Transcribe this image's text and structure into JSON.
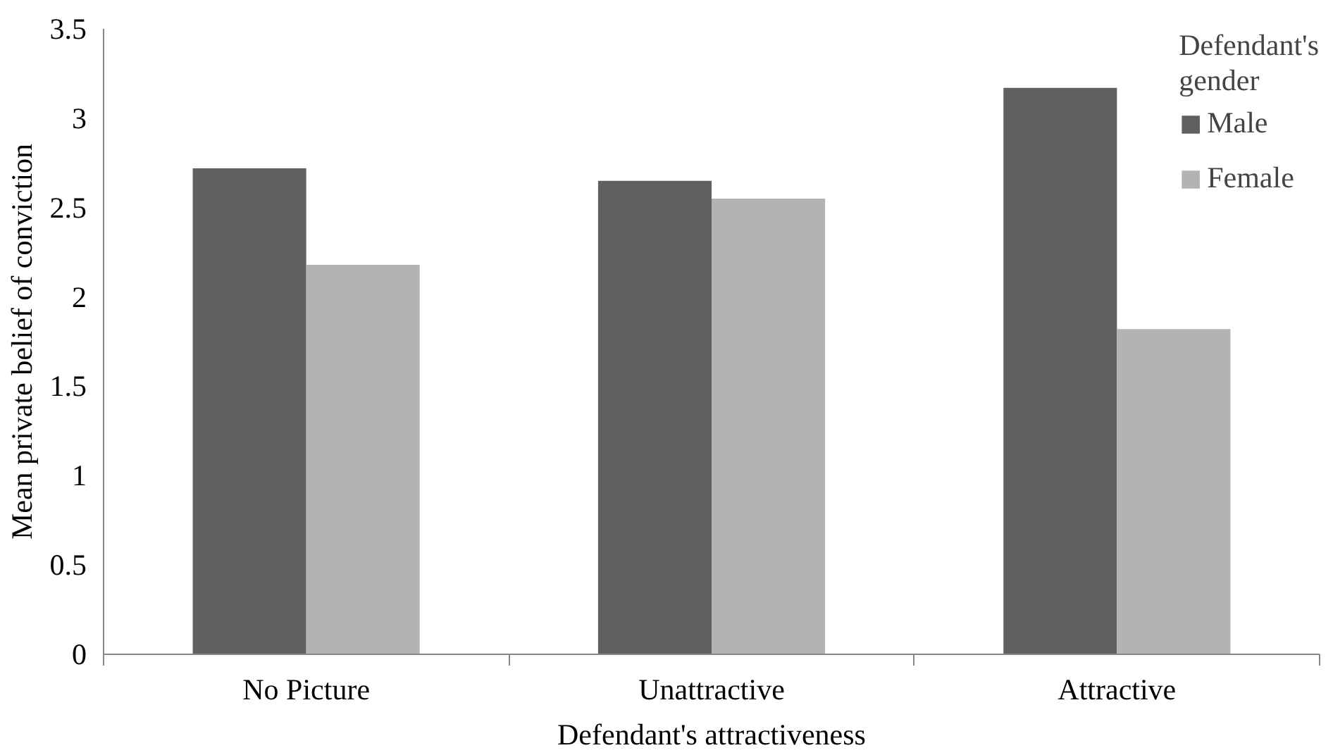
{
  "chart_data": {
    "type": "bar",
    "xlabel": "Defendant's attractiveness",
    "ylabel": "Mean private belief of conviction",
    "legend_title": "Defendant's gender",
    "categories": [
      "No Picture",
      "Unattractive",
      "Attractive"
    ],
    "series": [
      {
        "name": "Male",
        "color": "#606060",
        "values": [
          2.72,
          2.65,
          3.17
        ]
      },
      {
        "name": "Female",
        "color": "#b3b3b3",
        "values": [
          2.18,
          2.55,
          1.82
        ]
      }
    ],
    "ylim": [
      0,
      3.5
    ],
    "yticks": [
      0,
      0.5,
      1,
      1.5,
      2,
      2.5,
      3,
      3.5
    ],
    "grid": false,
    "legend": "top right"
  }
}
